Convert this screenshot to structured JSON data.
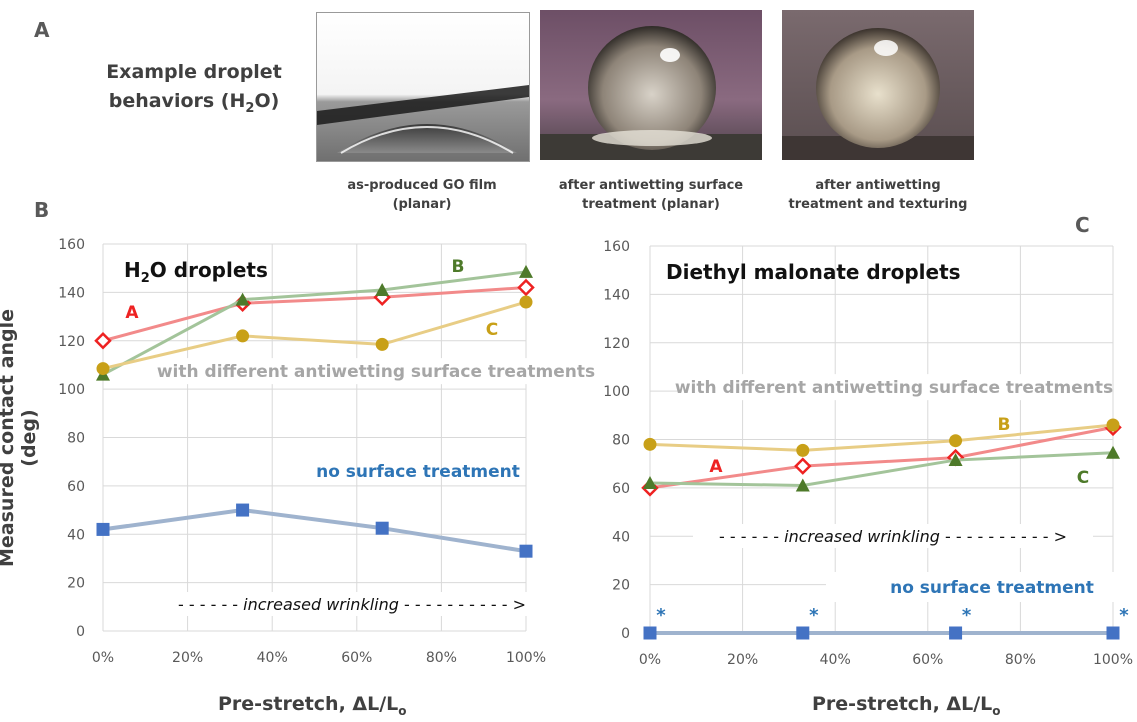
{
  "panel_labels": {
    "a": "A",
    "b": "B",
    "c": "C"
  },
  "top": {
    "title_line1": "Example droplet",
    "title_line2_prefix": "behaviors (H",
    "title_line2_sub": "2",
    "title_line2_suffix": "O)",
    "photos": [
      {
        "caption_line1": "as-produced GO film",
        "caption_line2": "(planar)",
        "icon": "droplet-planar-photo"
      },
      {
        "caption_line1": "after antiwetting surface",
        "caption_line2": "treatment (planar)",
        "icon": "droplet-treated-photo"
      },
      {
        "caption_line1": "after antiwetting",
        "caption_line2": "treatment and texturing",
        "icon": "droplet-textured-photo"
      }
    ]
  },
  "shared": {
    "ylabel": "Measured contact angle (deg)",
    "xlabel_prefix": "Pre-stretch, ΔL/L",
    "xlabel_sub": "o",
    "treated_note": "with different antiwetting surface treatments",
    "untreated_note": "no surface treatment",
    "wrinkle_dashes_left": "- - - - - -",
    "wrinkle_text": "increased wrinkling",
    "wrinkle_dashes_right": "- - - - - - - - - - >"
  },
  "colors": {
    "A": "#ee2222",
    "A_line": "#f28a8a",
    "B_marker": "#4e7a2a",
    "B_line": "#a3c49a",
    "C_marker": "#c8a018",
    "C_line": "#e8cd85",
    "untreated_marker": "#4472c4",
    "untreated_line": "#9fb3ce",
    "grid": "#d9d9d9",
    "axis_text": "#595959",
    "note_text": "#a6a6a6",
    "untreated_text": "#2e75b6"
  },
  "chart_data": [
    {
      "type": "line",
      "title_prefix": "H",
      "title_sub": "2",
      "title_suffix": "O droplets",
      "x": [
        0,
        33,
        66,
        100
      ],
      "xticks": [
        "0%",
        "20%",
        "40%",
        "60%",
        "80%",
        "100%"
      ],
      "yticks": [
        "0",
        "20",
        "40",
        "60",
        "80",
        "100",
        "120",
        "140",
        "160"
      ],
      "xlim": [
        0,
        100
      ],
      "ylim": [
        0,
        160
      ],
      "grid": true,
      "series": [
        {
          "name": "A",
          "marker": "diamond",
          "values": [
            120,
            135.5,
            138,
            142
          ]
        },
        {
          "name": "B",
          "marker": "triangle",
          "values": [
            106,
            137,
            141,
            148.5
          ]
        },
        {
          "name": "C",
          "marker": "circle",
          "values": [
            108.5,
            122,
            118.5,
            136
          ]
        },
        {
          "name": "",
          "marker": "square",
          "values": [
            42,
            50,
            42.5,
            33
          ]
        }
      ],
      "untreated_asterisks": false
    },
    {
      "type": "line",
      "title_prefix": "Diethyl malonate droplets",
      "title_sub": "",
      "title_suffix": "",
      "x": [
        0,
        33,
        66,
        100
      ],
      "xticks": [
        "0%",
        "20%",
        "40%",
        "60%",
        "80%",
        "100%"
      ],
      "yticks": [
        "0",
        "20",
        "40",
        "60",
        "80",
        "100",
        "120",
        "140",
        "160"
      ],
      "xlim": [
        0,
        100
      ],
      "ylim": [
        0,
        160
      ],
      "grid": true,
      "series": [
        {
          "name": "A",
          "marker": "diamond",
          "values": [
            60,
            69,
            72.5,
            85
          ]
        },
        {
          "name": "B",
          "marker": "circle",
          "values": [
            78,
            75.5,
            79.5,
            86
          ]
        },
        {
          "name": "C",
          "marker": "triangle",
          "values": [
            62,
            61,
            71.5,
            74.5
          ]
        },
        {
          "name": "",
          "marker": "square",
          "values": [
            0,
            0,
            0,
            0
          ]
        }
      ],
      "untreated_asterisks": true,
      "asterisk": "*"
    }
  ]
}
